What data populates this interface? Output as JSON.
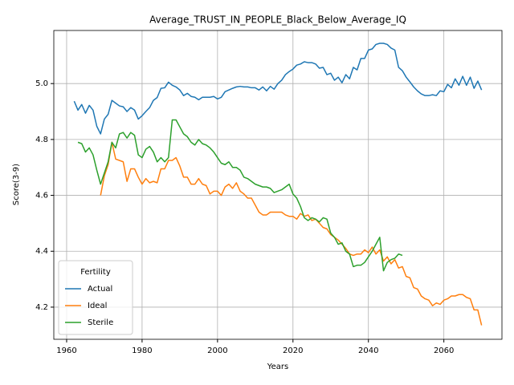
{
  "chart_data": {
    "type": "line",
    "title": "Average_TRUST_IN_PEOPLE_Black_Below_Average_IQ",
    "x_label": "Years",
    "y_label": "Score(3-9)",
    "legend_title": "Fertility",
    "legend": "lower left",
    "grid": true,
    "x": [
      1962,
      1963,
      1964,
      1965,
      1966,
      1967,
      1968,
      1969,
      1970,
      1971,
      1972,
      1973,
      1974,
      1975,
      1976,
      1977,
      1978,
      1979,
      1980,
      1981,
      1982,
      1983,
      1984,
      1985,
      1986,
      1987,
      1988,
      1989,
      1990,
      1991,
      1992,
      1993,
      1994,
      1995,
      1996,
      1997,
      1998,
      1999,
      2000,
      2001,
      2002,
      2003,
      2004,
      2005,
      2006,
      2007,
      2008,
      2009,
      2010,
      2011,
      2012,
      2013,
      2014,
      2015,
      2016,
      2017,
      2018,
      2019,
      2020,
      2021,
      2022,
      2023,
      2024,
      2025,
      2026,
      2027,
      2028,
      2029,
      2030,
      2031,
      2032,
      2033,
      2034,
      2035,
      2036,
      2037,
      2038,
      2039,
      2040,
      2041,
      2042,
      2043,
      2044,
      2045,
      2046,
      2047,
      2048,
      2049,
      2050,
      2051,
      2052,
      2053,
      2054,
      2055,
      2056,
      2057,
      2058,
      2059,
      2060,
      2061,
      2062,
      2063,
      2064,
      2065,
      2066,
      2067,
      2068,
      2069,
      2070
    ],
    "series": [
      {
        "name": "Actual",
        "color": "#1f77b4",
        "values": [
          4.937,
          4.905,
          4.925,
          4.894,
          4.922,
          4.905,
          4.847,
          4.82,
          4.873,
          4.89,
          4.94,
          4.93,
          4.92,
          4.917,
          4.9,
          4.914,
          4.905,
          4.873,
          4.885,
          4.9,
          4.914,
          4.94,
          4.95,
          4.983,
          4.985,
          5.005,
          4.994,
          4.988,
          4.977,
          4.957,
          4.965,
          4.954,
          4.951,
          4.942,
          4.951,
          4.951,
          4.951,
          4.954,
          4.945,
          4.951,
          4.971,
          4.977,
          4.983,
          4.988,
          4.99,
          4.988,
          4.988,
          4.985,
          4.985,
          4.977,
          4.988,
          4.974,
          4.99,
          4.98,
          5.0,
          5.012,
          5.032,
          5.043,
          5.052,
          5.066,
          5.07,
          5.078,
          5.075,
          5.075,
          5.07,
          5.055,
          5.058,
          5.032,
          5.037,
          5.012,
          5.023,
          5.003,
          5.032,
          5.017,
          5.058,
          5.049,
          5.09,
          5.09,
          5.12,
          5.124,
          5.14,
          5.144,
          5.144,
          5.14,
          5.127,
          5.12,
          5.058,
          5.046,
          5.023,
          5.006,
          4.988,
          4.974,
          4.963,
          4.957,
          4.957,
          4.96,
          4.957,
          4.974,
          4.971,
          4.997,
          4.985,
          5.017,
          4.994,
          5.026,
          4.994,
          5.023,
          4.983,
          5.009,
          4.977
        ]
      },
      {
        "name": "Ideal",
        "color": "#ff7f0e",
        "values": [
          null,
          null,
          null,
          null,
          null,
          null,
          null,
          4.6,
          4.67,
          4.71,
          4.79,
          4.73,
          4.725,
          4.72,
          4.65,
          4.695,
          4.695,
          4.665,
          4.64,
          4.66,
          4.645,
          4.65,
          4.645,
          4.695,
          4.695,
          4.725,
          4.725,
          4.735,
          4.705,
          4.665,
          4.665,
          4.64,
          4.64,
          4.66,
          4.64,
          4.635,
          4.605,
          4.615,
          4.615,
          4.6,
          4.63,
          4.64,
          4.625,
          4.645,
          4.615,
          4.605,
          4.59,
          4.59,
          4.565,
          4.54,
          4.53,
          4.53,
          4.54,
          4.54,
          4.54,
          4.54,
          4.53,
          4.525,
          4.525,
          4.515,
          4.535,
          4.525,
          4.53,
          4.51,
          4.515,
          4.5,
          4.485,
          4.48,
          4.46,
          4.45,
          4.44,
          4.425,
          4.41,
          4.39,
          4.385,
          4.39,
          4.39,
          4.405,
          4.395,
          4.415,
          4.39,
          4.405,
          4.365,
          4.38,
          4.355,
          4.37,
          4.34,
          4.345,
          4.31,
          4.305,
          4.27,
          4.265,
          4.24,
          4.23,
          4.225,
          4.205,
          4.215,
          4.21,
          4.225,
          4.23,
          4.24,
          4.24,
          4.245,
          4.245,
          4.235,
          4.23,
          4.19,
          4.19,
          4.135
        ]
      },
      {
        "name": "Sterile",
        "color": "#2ca02c",
        "values": [
          null,
          4.79,
          4.785,
          4.755,
          4.77,
          4.745,
          4.69,
          4.64,
          4.68,
          4.72,
          4.79,
          4.77,
          4.82,
          4.825,
          4.805,
          4.825,
          4.815,
          4.745,
          4.735,
          4.765,
          4.775,
          4.755,
          4.72,
          4.735,
          4.72,
          4.735,
          4.87,
          4.87,
          4.845,
          4.82,
          4.81,
          4.79,
          4.78,
          4.8,
          4.785,
          4.78,
          4.77,
          4.755,
          4.735,
          4.715,
          4.71,
          4.72,
          4.7,
          4.7,
          4.69,
          4.665,
          4.66,
          4.65,
          4.64,
          4.635,
          4.63,
          4.63,
          4.625,
          4.61,
          4.615,
          4.62,
          4.63,
          4.64,
          4.605,
          4.59,
          4.56,
          4.52,
          4.51,
          4.52,
          4.515,
          4.505,
          4.52,
          4.515,
          4.465,
          4.45,
          4.425,
          4.43,
          4.4,
          4.39,
          4.345,
          4.35,
          4.35,
          4.36,
          4.38,
          4.4,
          4.425,
          4.45,
          4.33,
          4.36,
          4.37,
          4.375,
          4.39,
          4.385,
          null,
          null,
          null,
          null,
          null,
          null,
          null,
          null,
          null,
          null,
          null,
          null,
          null,
          null,
          null,
          null,
          null,
          null,
          null,
          null,
          null
        ]
      }
    ],
    "xlim": [
      1956.6,
      2075.4
    ],
    "ylim": [
      4.085,
      5.19
    ],
    "xticks": [
      1960,
      1980,
      2000,
      2020,
      2040,
      2060
    ],
    "yticks": [
      4.2,
      4.4,
      4.6,
      4.8,
      {
        "value": 5,
        "label": "5.0"
      }
    ]
  }
}
